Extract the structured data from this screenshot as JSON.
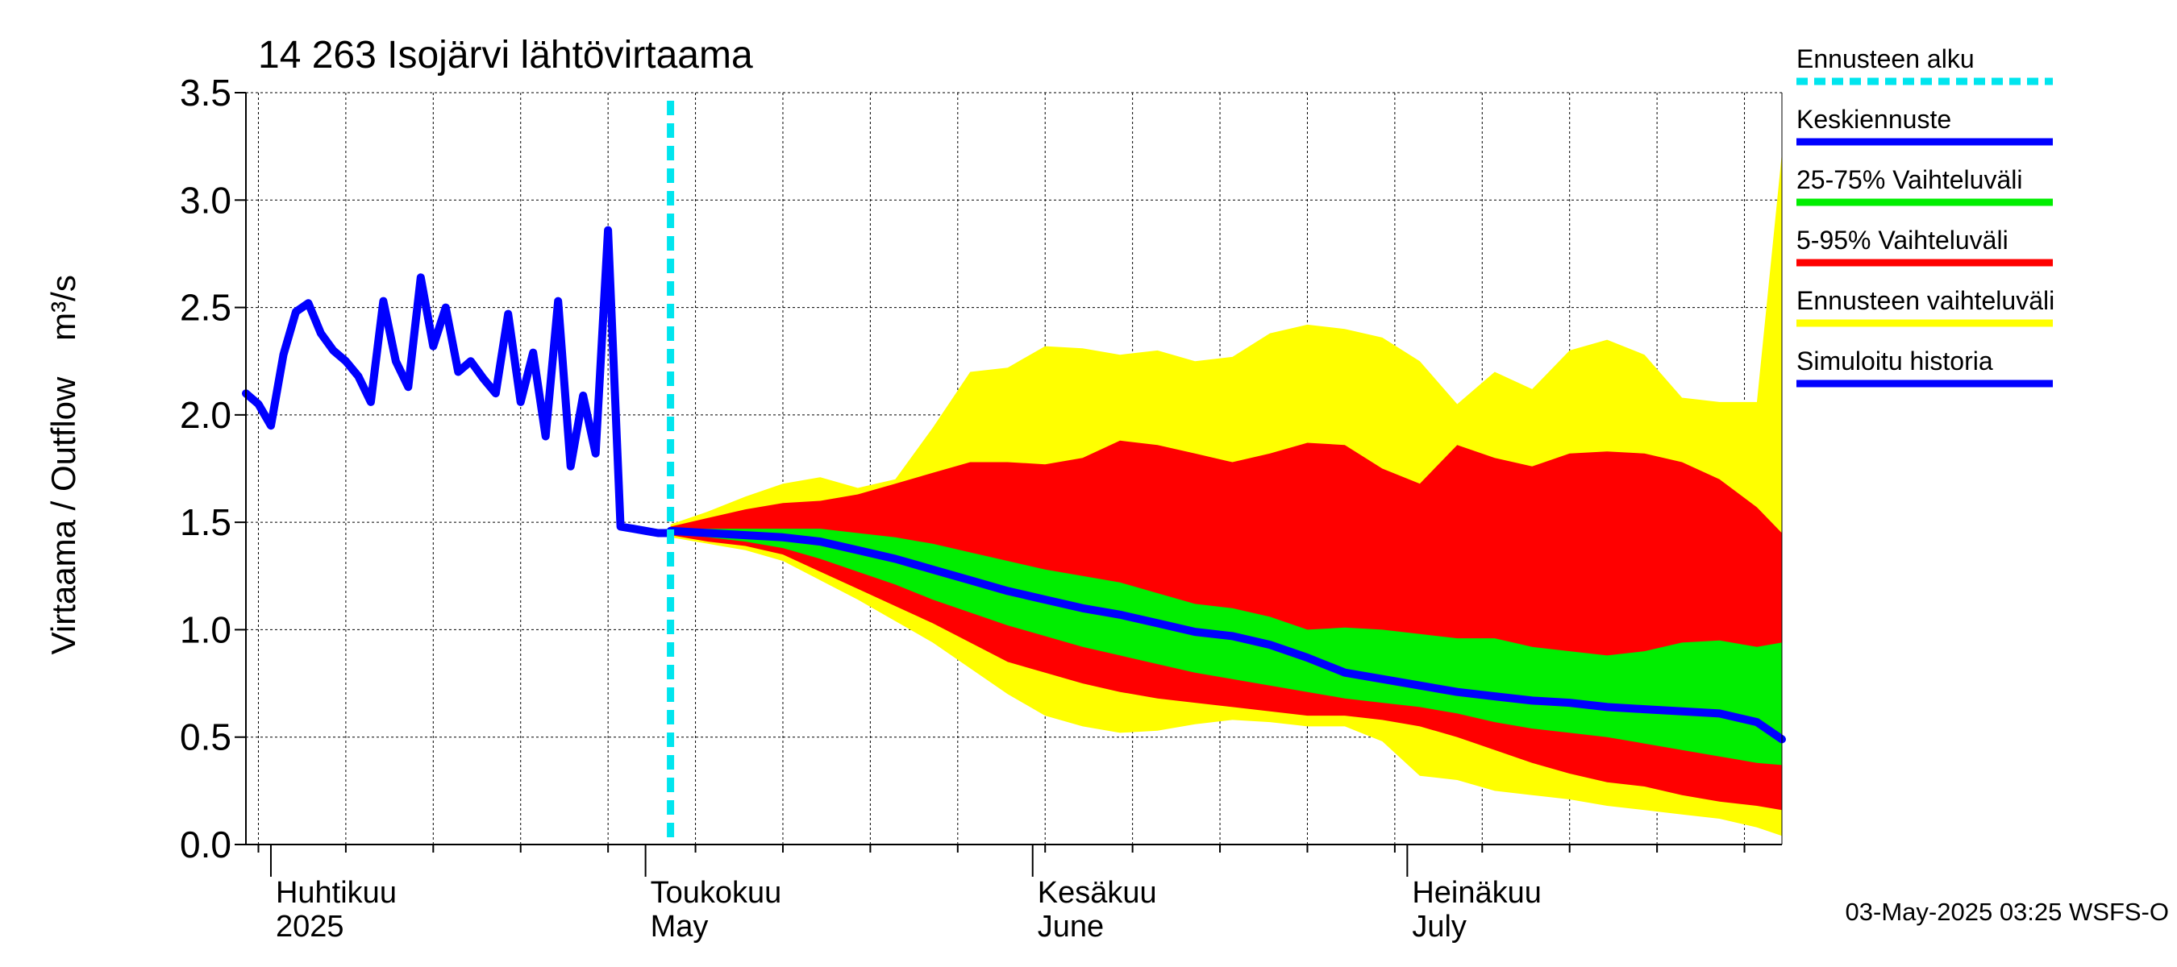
{
  "chart_data": {
    "type": "area",
    "title": "14 263 Isojärvi lähtövirtaama",
    "ylabel_left": "Virtaama / Outflow",
    "ylabel_unit": "m³/s",
    "ylim": [
      0,
      3.5
    ],
    "yticks": [
      "0.0",
      "0.5",
      "1.0",
      "1.5",
      "2.0",
      "2.5",
      "3.0",
      "3.5"
    ],
    "x_range": [
      "2025-03-30",
      "2025-07-31"
    ],
    "month_labels": [
      {
        "date": "2025-04-01",
        "line1": "Huhtikuu",
        "line2": "2025"
      },
      {
        "date": "2025-05-01",
        "line1": "Toukokuu",
        "line2": "May"
      },
      {
        "date": "2025-06-01",
        "line1": "Kesäkuu",
        "line2": "June"
      },
      {
        "date": "2025-07-01",
        "line1": "Heinäkuu",
        "line2": "July"
      }
    ],
    "grid": true,
    "forecast_start": "2025-05-03",
    "footer": "03-May-2025 03:25 WSFS-O",
    "legend": [
      {
        "label": "Ennusteen alku",
        "color": "#00e5ee",
        "style": "dashed"
      },
      {
        "label": "Keskiennuste",
        "color": "#0000ff",
        "style": "solid"
      },
      {
        "label": "25-75% Vaihteluväli",
        "color": "#00ee00",
        "style": "solid"
      },
      {
        "label": "5-95% Vaihteluväli",
        "color": "#ff0000",
        "style": "solid"
      },
      {
        "label": "Ennusteen vaihteluväli",
        "color": "#ffff00",
        "style": "solid"
      },
      {
        "label": "Simuloitu historia",
        "color": "#0000ff",
        "style": "solid"
      }
    ],
    "colors": {
      "history": "#0000ff",
      "median": "#0000ff",
      "band_25_75": "#00ee00",
      "band_5_95": "#ff0000",
      "band_full": "#ffff00",
      "forecast_start_line": "#00e5ee"
    },
    "series": {
      "simulated_history": {
        "x": [
          "2025-03-30",
          "2025-03-31",
          "2025-04-01",
          "2025-04-02",
          "2025-04-03",
          "2025-04-04",
          "2025-04-05",
          "2025-04-06",
          "2025-04-07",
          "2025-04-08",
          "2025-04-09",
          "2025-04-10",
          "2025-04-11",
          "2025-04-12",
          "2025-04-13",
          "2025-04-14",
          "2025-04-15",
          "2025-04-16",
          "2025-04-17",
          "2025-04-18",
          "2025-04-19",
          "2025-04-20",
          "2025-04-21",
          "2025-04-22",
          "2025-04-23",
          "2025-04-24",
          "2025-04-25",
          "2025-04-26",
          "2025-04-27",
          "2025-04-28",
          "2025-04-29",
          "2025-04-30",
          "2025-05-01",
          "2025-05-02",
          "2025-05-03"
        ],
        "y": [
          2.1,
          2.05,
          1.95,
          2.28,
          2.48,
          2.52,
          2.38,
          2.3,
          2.25,
          2.18,
          2.06,
          2.53,
          2.25,
          2.13,
          2.64,
          2.32,
          2.5,
          2.2,
          2.25,
          2.17,
          2.1,
          2.47,
          2.06,
          2.29,
          1.9,
          2.53,
          1.76,
          2.09,
          1.82,
          2.86,
          1.48,
          1.47,
          1.46,
          1.45,
          1.45
        ]
      },
      "forecast": {
        "x": [
          "2025-05-03",
          "2025-05-06",
          "2025-05-09",
          "2025-05-12",
          "2025-05-15",
          "2025-05-18",
          "2025-05-21",
          "2025-05-24",
          "2025-05-27",
          "2025-05-30",
          "2025-06-02",
          "2025-06-05",
          "2025-06-08",
          "2025-06-11",
          "2025-06-14",
          "2025-06-17",
          "2025-06-20",
          "2025-06-23",
          "2025-06-26",
          "2025-06-29",
          "2025-07-02",
          "2025-07-05",
          "2025-07-08",
          "2025-07-11",
          "2025-07-14",
          "2025-07-17",
          "2025-07-20",
          "2025-07-23",
          "2025-07-26",
          "2025-07-29",
          "2025-07-31"
        ],
        "median": [
          1.46,
          1.45,
          1.44,
          1.43,
          1.41,
          1.37,
          1.33,
          1.28,
          1.23,
          1.18,
          1.14,
          1.1,
          1.07,
          1.03,
          0.99,
          0.97,
          0.93,
          0.87,
          0.8,
          0.77,
          0.74,
          0.71,
          0.69,
          0.67,
          0.66,
          0.64,
          0.63,
          0.62,
          0.61,
          0.57,
          0.49
        ],
        "p25": [
          1.45,
          1.43,
          1.41,
          1.38,
          1.33,
          1.27,
          1.21,
          1.14,
          1.08,
          1.02,
          0.97,
          0.92,
          0.88,
          0.84,
          0.8,
          0.77,
          0.74,
          0.71,
          0.68,
          0.66,
          0.64,
          0.61,
          0.57,
          0.54,
          0.52,
          0.5,
          0.47,
          0.44,
          0.41,
          0.38,
          0.37
        ],
        "p75": [
          1.47,
          1.47,
          1.47,
          1.47,
          1.47,
          1.45,
          1.43,
          1.4,
          1.36,
          1.32,
          1.28,
          1.25,
          1.22,
          1.17,
          1.12,
          1.1,
          1.06,
          1.0,
          1.01,
          1.0,
          0.98,
          0.96,
          0.96,
          0.92,
          0.9,
          0.88,
          0.9,
          0.94,
          0.95,
          0.92,
          0.94
        ],
        "p5": [
          1.44,
          1.41,
          1.39,
          1.35,
          1.27,
          1.19,
          1.11,
          1.03,
          0.94,
          0.85,
          0.8,
          0.75,
          0.71,
          0.68,
          0.66,
          0.64,
          0.62,
          0.6,
          0.6,
          0.58,
          0.55,
          0.5,
          0.44,
          0.38,
          0.33,
          0.29,
          0.27,
          0.23,
          0.2,
          0.18,
          0.16
        ],
        "p95": [
          1.48,
          1.52,
          1.56,
          1.59,
          1.6,
          1.63,
          1.68,
          1.73,
          1.78,
          1.78,
          1.77,
          1.8,
          1.88,
          1.86,
          1.82,
          1.78,
          1.82,
          1.87,
          1.86,
          1.75,
          1.68,
          1.86,
          1.8,
          1.76,
          1.82,
          1.83,
          1.82,
          1.78,
          1.7,
          1.57,
          1.45
        ],
        "min": [
          1.43,
          1.4,
          1.37,
          1.32,
          1.23,
          1.14,
          1.04,
          0.94,
          0.82,
          0.7,
          0.6,
          0.55,
          0.52,
          0.53,
          0.56,
          0.58,
          0.57,
          0.55,
          0.55,
          0.48,
          0.32,
          0.3,
          0.25,
          0.23,
          0.21,
          0.18,
          0.16,
          0.14,
          0.12,
          0.08,
          0.04
        ],
        "max": [
          1.49,
          1.55,
          1.62,
          1.68,
          1.71,
          1.66,
          1.7,
          1.94,
          2.2,
          2.22,
          2.32,
          2.31,
          2.28,
          2.3,
          2.25,
          2.27,
          2.38,
          2.42,
          2.4,
          2.36,
          2.25,
          2.05,
          2.2,
          2.12,
          2.3,
          2.35,
          2.28,
          2.08,
          2.06,
          2.06,
          3.22
        ]
      }
    }
  }
}
